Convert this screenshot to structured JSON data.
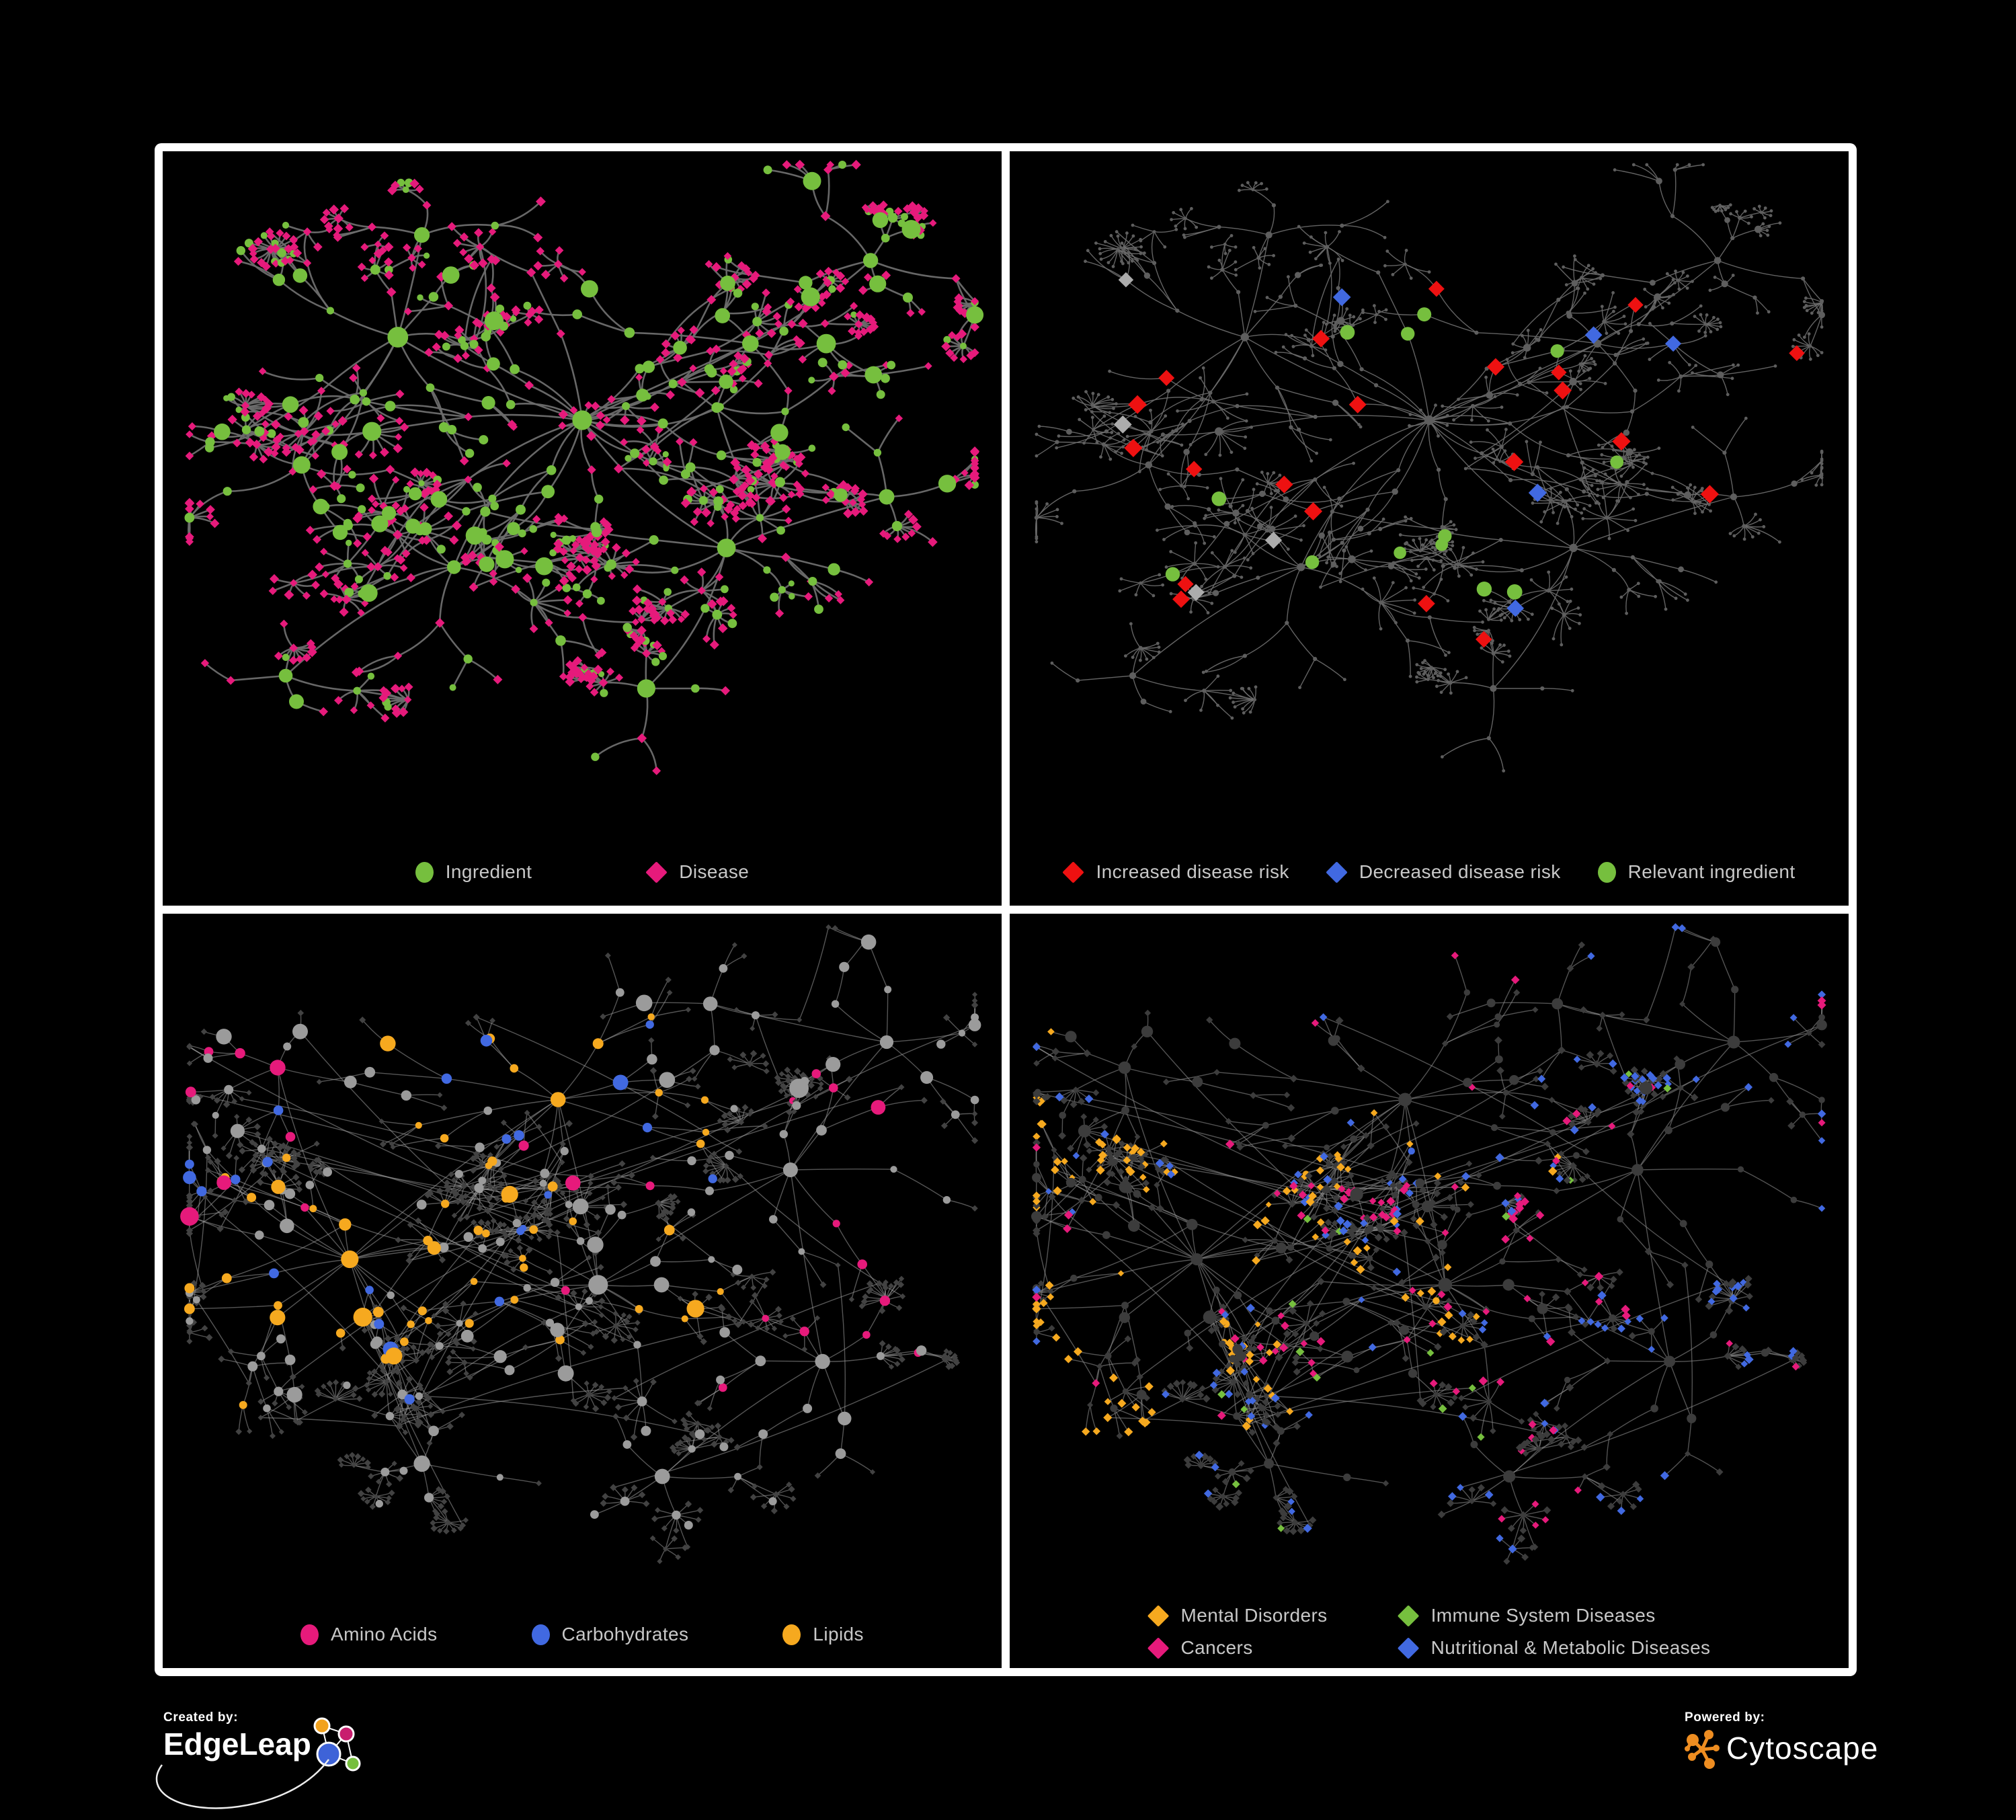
{
  "legend_text_color": "#C8C8C8",
  "colors": {
    "green": "#76BF3E",
    "pink": "#E61A7B",
    "red": "#EE1111",
    "blue": "#4169E1",
    "grayDiamond": "#ACACAC",
    "orange": "#F6A91F",
    "gray": "#9B9B9B",
    "dark": "#3C3C3C",
    "darkLeaf": "#424242",
    "dim": "#5E5E5E"
  },
  "panels": [
    {
      "id": "ingredient-disease",
      "row": 0,
      "paint": "bipartite",
      "seed": "paint-tl-1",
      "edge": {
        "color": "#6D6D6D",
        "width": 2.6,
        "opacity": 0.95,
        "curve": 0.18
      },
      "legend": {
        "layout": "row",
        "gap": 170,
        "items": [
          {
            "shape": "circle",
            "color": "#76BF3E",
            "label": "Ingredient"
          },
          {
            "shape": "diamond",
            "color": "#E61A7B",
            "label": "Disease"
          }
        ]
      }
    },
    {
      "id": "disease-risk",
      "row": 0,
      "paint": "dim_highlight",
      "seed": "paint-tr-2",
      "hprob": 0.14,
      "highlights": [
        [
          "red",
          0.5,
          11.5
        ],
        [
          "green_c",
          0.27,
          9
        ],
        [
          "blue",
          0.13,
          11.5
        ],
        [
          "grayDiamond",
          0.1,
          11
        ]
      ],
      "edge": {
        "color": "#6E6E6E",
        "width": 1.4,
        "opacity": 0.9,
        "curve": 0.15
      },
      "legend": {
        "layout": "row",
        "gap": 55,
        "items": [
          {
            "shape": "diamond",
            "color": "#EE1111",
            "label": "Increased disease risk"
          },
          {
            "shape": "diamond",
            "color": "#4169E1",
            "label": "Decreased disease risk"
          },
          {
            "shape": "circle",
            "color": "#76BF3E",
            "label": "Relevant ingredient"
          }
        ]
      }
    },
    {
      "id": "macronutrient-classes",
      "row": 1,
      "paint": "hub_classes",
      "seed": "paint-bl-3",
      "edge": {
        "color": "#9A9A9A",
        "width": 1.4,
        "opacity": 0.55,
        "curve": 0.06
      },
      "legend": {
        "layout": "row",
        "gap": 140,
        "items": [
          {
            "shape": "circle",
            "color": "#E61A7B",
            "label": "Amino Acids"
          },
          {
            "shape": "circle",
            "color": "#4169E1",
            "label": "Carbohydrates"
          },
          {
            "shape": "circle",
            "color": "#F6A91F",
            "label": "Lipids"
          }
        ]
      }
    },
    {
      "id": "disease-classes",
      "row": 1,
      "paint": "leaf_classes",
      "seed": "paint-br-4",
      "edge": {
        "color": "#8A8A8A",
        "width": 1.4,
        "opacity": 0.6,
        "curve": 0.06
      },
      "legend": {
        "layout": "grid2",
        "items": [
          {
            "shape": "diamond",
            "color": "#F6A91F",
            "label": "Mental Disorders"
          },
          {
            "shape": "diamond",
            "color": "#76BF3E",
            "label": "Immune System Diseases"
          },
          {
            "shape": "diamond",
            "color": "#E61A7B",
            "label": "Cancers"
          },
          {
            "shape": "diamond",
            "color": "#4169E1",
            "label": "Nutritional & Metabolic Diseases"
          }
        ]
      }
    }
  ],
  "credits": {
    "left": {
      "label": "Created by:",
      "name": "EdgeLeap"
    },
    "right": {
      "label": "Powered by:",
      "name": "Cytoscape"
    }
  },
  "network_specs": {
    "rows": [
      {
        "seed": "toprow-ingredients",
        "cross": 42,
        "crossDist": 0.22,
        "coreCross": 70,
        "clusters": [
          {
            "x": 0.5,
            "y": 0.4,
            "reach": 0.115,
            "branches": 15,
            "depth": 3,
            "fan": 0.3,
            "core": 1.0
          },
          {
            "x": 0.27,
            "y": 0.27,
            "reach": 0.095,
            "branches": 7,
            "depth": 2,
            "fan": 0.35,
            "core": 0.55
          },
          {
            "x": 0.71,
            "y": 0.28,
            "reach": 0.095,
            "branches": 7,
            "depth": 2,
            "fan": 0.35,
            "core": 0.5
          },
          {
            "x": 0.86,
            "y": 0.15,
            "reach": 0.075,
            "branches": 5,
            "depth": 2,
            "fan": 0.3,
            "core": 0.2
          },
          {
            "x": 0.68,
            "y": 0.6,
            "reach": 0.09,
            "branches": 7,
            "depth": 2,
            "fan": 0.4,
            "core": 0.7
          },
          {
            "x": 0.34,
            "y": 0.63,
            "reach": 0.09,
            "branches": 7,
            "depth": 2,
            "fan": 0.35,
            "core": 0.45
          },
          {
            "x": 0.58,
            "y": 0.82,
            "reach": 0.07,
            "branches": 4,
            "depth": 1,
            "fan": 0.85,
            "core": 0.25
          },
          {
            "x": 0.15,
            "y": 0.47,
            "reach": 0.08,
            "branches": 5,
            "depth": 2,
            "fan": 0.3,
            "core": 0.3
          },
          {
            "x": 0.88,
            "y": 0.52,
            "reach": 0.07,
            "branches": 4,
            "depth": 1,
            "fan": 0.5,
            "core": 0.3
          },
          {
            "x": 0.3,
            "y": 0.11,
            "reach": 0.07,
            "branches": 4,
            "depth": 1,
            "fan": 0.45,
            "core": 0.2
          },
          {
            "x": 0.13,
            "y": 0.8,
            "reach": 0.06,
            "branches": 4,
            "depth": 1,
            "fan": 0.5,
            "core": 0.15
          }
        ]
      },
      {
        "seed": "bottomrow-classes",
        "cross": 85,
        "crossDist": 0.5,
        "coreCross": 90,
        "clusters": [
          {
            "x": 0.21,
            "y": 0.52,
            "reach": 0.115,
            "branches": 16,
            "depth": 3,
            "fan": 0.3,
            "core": 1.0,
            "bl": [
              [
                "gray",
                0.5
              ],
              [
                "orange",
                0.27
              ],
              [
                "pink",
                0.1
              ],
              [
                "blue",
                0.13
              ]
            ],
            "br": [
              [
                "dark",
                0.42
              ],
              [
                "orange",
                0.47
              ],
              [
                "pink",
                0.06
              ],
              [
                "blue",
                0.05
              ]
            ]
          },
          {
            "x": 0.47,
            "y": 0.27,
            "reach": 0.105,
            "branches": 10,
            "depth": 2,
            "fan": 0.35,
            "core": 0.8,
            "bl": [
              [
                "orange",
                0.42
              ],
              [
                "gray",
                0.33
              ],
              [
                "blue",
                0.25
              ]
            ],
            "br": [
              [
                "dark",
                0.45
              ],
              [
                "pink",
                0.25
              ],
              [
                "blue",
                0.2
              ],
              [
                "orange",
                0.05
              ],
              [
                "green",
                0.05
              ]
            ]
          },
          {
            "x": 0.52,
            "y": 0.56,
            "reach": 0.1,
            "branches": 9,
            "depth": 2,
            "fan": 0.45,
            "core": 0.8,
            "bl": [
              [
                "orange",
                0.5
              ],
              [
                "gray",
                0.5
              ]
            ],
            "br": [
              [
                "dark",
                0.5
              ],
              [
                "pink",
                0.3
              ],
              [
                "blue",
                0.15
              ],
              [
                "green",
                0.05
              ]
            ]
          },
          {
            "x": 0.76,
            "y": 0.38,
            "reach": 0.095,
            "branches": 7,
            "depth": 2,
            "fan": 0.35,
            "core": 0.5,
            "bl": [
              [
                "gray",
                0.8
              ],
              [
                "pink",
                0.2
              ]
            ],
            "br": [
              [
                "dark",
                0.5
              ],
              [
                "blue",
                0.42
              ],
              [
                "pink",
                0.04
              ],
              [
                "green",
                0.04
              ]
            ]
          },
          {
            "x": 0.8,
            "y": 0.68,
            "reach": 0.09,
            "branches": 6,
            "depth": 2,
            "fan": 0.4,
            "core": 0.4,
            "bl": [
              [
                "gray",
                0.7
              ],
              [
                "pink",
                0.3
              ]
            ],
            "br": [
              [
                "dark",
                0.55
              ],
              [
                "blue",
                0.35
              ],
              [
                "pink",
                0.1
              ]
            ]
          },
          {
            "x": 0.3,
            "y": 0.84,
            "reach": 0.075,
            "branches": 5,
            "depth": 1,
            "fan": 0.8,
            "core": 0.3,
            "bl": [
              [
                "gray",
                0.9
              ],
              [
                "pink",
                0.1
              ]
            ],
            "br": [
              [
                "dark",
                0.8
              ],
              [
                "blue",
                0.15
              ],
              [
                "green",
                0.05
              ]
            ]
          },
          {
            "x": 0.6,
            "y": 0.86,
            "reach": 0.07,
            "branches": 5,
            "depth": 1,
            "fan": 0.8,
            "core": 0.25,
            "bl": [
              [
                "gray",
                0.85
              ],
              [
                "orange",
                0.15
              ]
            ],
            "br": [
              [
                "dark",
                0.78
              ],
              [
                "pink",
                0.12
              ],
              [
                "blue",
                0.1
              ]
            ]
          },
          {
            "x": 0.12,
            "y": 0.22,
            "reach": 0.075,
            "branches": 5,
            "depth": 2,
            "fan": 0.3,
            "core": 0.3,
            "bl": [
              [
                "gray",
                0.7
              ],
              [
                "pink",
                0.15
              ],
              [
                "blue",
                0.15
              ]
            ],
            "br": [
              [
                "dark",
                0.6
              ],
              [
                "orange",
                0.25
              ],
              [
                "blue",
                0.15
              ]
            ]
          },
          {
            "x": 0.88,
            "y": 0.18,
            "reach": 0.08,
            "branches": 5,
            "depth": 2,
            "fan": 0.35,
            "core": 0.3,
            "bl": [
              [
                "gray",
                0.85
              ],
              [
                "pink",
                0.15
              ]
            ],
            "br": [
              [
                "dark",
                0.5
              ],
              [
                "blue",
                0.4
              ],
              [
                "pink",
                0.1
              ]
            ]
          },
          {
            "x": 0.66,
            "y": 0.12,
            "reach": 0.07,
            "branches": 4,
            "depth": 1,
            "fan": 0.45,
            "core": 0.2,
            "bl": [
              [
                "gray",
                0.8
              ],
              [
                "orange",
                0.2
              ]
            ],
            "br": [
              [
                "dark",
                0.6
              ],
              [
                "blue",
                0.3
              ],
              [
                "pink",
                0.1
              ]
            ]
          }
        ]
      }
    ]
  }
}
